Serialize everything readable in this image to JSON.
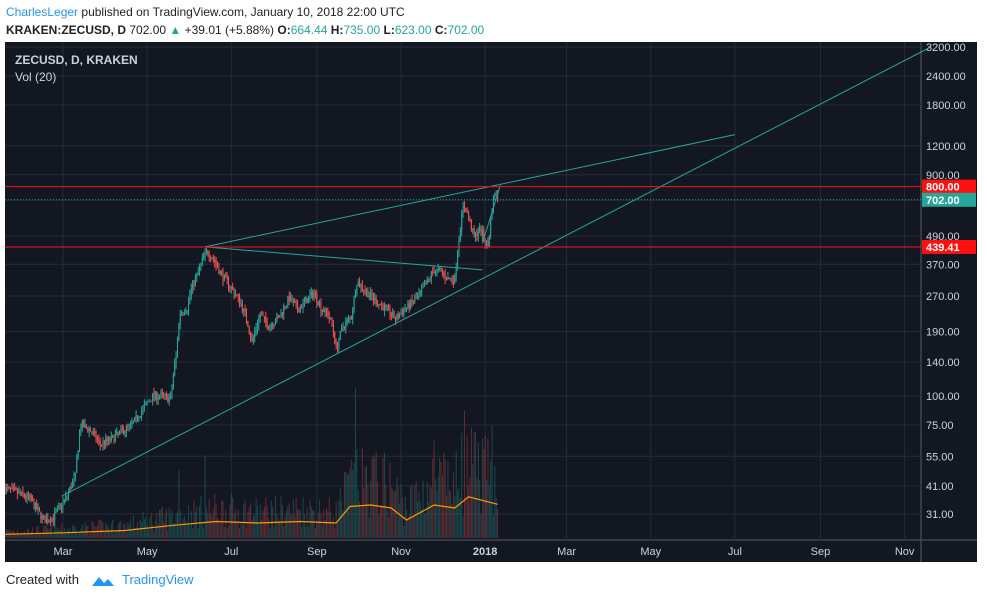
{
  "header": {
    "author": "CharlesLeger",
    "published_text": "published on TradingView.com, January 10, 2018 22:00 UTC",
    "symbol": "KRAKEN:ZECUSD, D",
    "last": "702.00",
    "change": "+39.01 (+5.88%)",
    "o_label": "O:",
    "o_value": "664.44",
    "h_label": "H:",
    "h_value": "735.00",
    "l_label": "L:",
    "l_value": "623.00",
    "c_label": "C:",
    "c_value": "702.00"
  },
  "footer": {
    "created_with": "Created with",
    "brand": "TradingView"
  },
  "colors": {
    "background": "#131722",
    "up": "#26a69a",
    "down": "#ef5350",
    "trendline": "#26a69a",
    "resistance": "#ff1010",
    "volume_ma": "#ff9800"
  },
  "chart_data": {
    "type": "candlestick",
    "title": "ZECUSD, D, KRAKEN",
    "subtitle": "Vol (20)",
    "y_scale": "log",
    "y_ticks": [
      3200,
      2400,
      1800,
      1200,
      900,
      700,
      490,
      370,
      270,
      190,
      140,
      100,
      75,
      55,
      41,
      31
    ],
    "y_tick_labels": [
      "3200.00",
      "2400.00",
      "1800.00",
      "1200.00",
      "900.00",
      "700.00",
      "490.00",
      "370.00",
      "270.00",
      "190.00",
      "140.00",
      "100.00",
      "75.00",
      "55.00",
      "41.00",
      "31.00"
    ],
    "x_labels": [
      {
        "label": "Mar",
        "date": "2017-03-01"
      },
      {
        "label": "May",
        "date": "2017-05-01"
      },
      {
        "label": "Jul",
        "date": "2017-07-01"
      },
      {
        "label": "Sep",
        "date": "2017-09-01"
      },
      {
        "label": "Nov",
        "date": "2017-11-01"
      },
      {
        "label": "2018",
        "date": "2018-01-01"
      },
      {
        "label": "Mar",
        "date": "2018-03-01"
      },
      {
        "label": "May",
        "date": "2018-05-01"
      },
      {
        "label": "Jul",
        "date": "2018-07-01"
      },
      {
        "label": "Sep",
        "date": "2018-09-01"
      },
      {
        "label": "Nov",
        "date": "2018-11-01"
      }
    ],
    "x_range": [
      "2017-01-18",
      "2018-12-01"
    ],
    "price_anchors": [
      [
        "2017-01-18",
        40
      ],
      [
        "2017-01-28",
        38
      ],
      [
        "2017-02-05",
        36
      ],
      [
        "2017-02-15",
        29
      ],
      [
        "2017-02-22",
        30
      ],
      [
        "2017-03-03",
        36
      ],
      [
        "2017-03-10",
        45
      ],
      [
        "2017-03-14",
        75
      ],
      [
        "2017-03-20",
        72
      ],
      [
        "2017-03-28",
        62
      ],
      [
        "2017-04-05",
        65
      ],
      [
        "2017-04-12",
        70
      ],
      [
        "2017-04-20",
        75
      ],
      [
        "2017-04-28",
        88
      ],
      [
        "2017-05-05",
        100
      ],
      [
        "2017-05-12",
        100
      ],
      [
        "2017-05-18",
        97
      ],
      [
        "2017-05-22",
        150
      ],
      [
        "2017-05-25",
        230
      ],
      [
        "2017-05-30",
        240
      ],
      [
        "2017-06-02",
        290
      ],
      [
        "2017-06-07",
        340
      ],
      [
        "2017-06-11",
        400
      ],
      [
        "2017-06-14",
        420
      ],
      [
        "2017-06-18",
        390
      ],
      [
        "2017-06-23",
        340
      ],
      [
        "2017-06-28",
        310
      ],
      [
        "2017-07-03",
        280
      ],
      [
        "2017-07-08",
        250
      ],
      [
        "2017-07-13",
        205
      ],
      [
        "2017-07-16",
        170
      ],
      [
        "2017-07-22",
        225
      ],
      [
        "2017-07-28",
        200
      ],
      [
        "2017-08-05",
        220
      ],
      [
        "2017-08-12",
        265
      ],
      [
        "2017-08-18",
        235
      ],
      [
        "2017-08-25",
        260
      ],
      [
        "2017-08-30",
        280
      ],
      [
        "2017-09-04",
        240
      ],
      [
        "2017-09-08",
        230
      ],
      [
        "2017-09-12",
        205
      ],
      [
        "2017-09-15",
        160
      ],
      [
        "2017-09-20",
        200
      ],
      [
        "2017-09-26",
        220
      ],
      [
        "2017-09-30",
        310
      ],
      [
        "2017-10-05",
        290
      ],
      [
        "2017-10-10",
        270
      ],
      [
        "2017-10-16",
        250
      ],
      [
        "2017-10-22",
        235
      ],
      [
        "2017-10-28",
        215
      ],
      [
        "2017-11-03",
        235
      ],
      [
        "2017-11-08",
        250
      ],
      [
        "2017-11-14",
        270
      ],
      [
        "2017-11-20",
        310
      ],
      [
        "2017-11-25",
        350
      ],
      [
        "2017-11-30",
        345
      ],
      [
        "2017-12-05",
        320
      ],
      [
        "2017-12-10",
        320
      ],
      [
        "2017-12-13",
        480
      ],
      [
        "2017-12-16",
        650
      ],
      [
        "2017-12-18",
        640
      ],
      [
        "2017-12-21",
        560
      ],
      [
        "2017-12-24",
        480
      ],
      [
        "2017-12-27",
        520
      ],
      [
        "2017-12-30",
        500
      ],
      [
        "2018-01-03",
        440
      ],
      [
        "2018-01-06",
        640
      ],
      [
        "2018-01-08",
        760
      ],
      [
        "2018-01-10",
        702
      ]
    ],
    "volume_ma_anchors": [
      [
        "2017-01-18",
        0.05
      ],
      [
        "2017-03-01",
        0.07
      ],
      [
        "2017-04-15",
        0.1
      ],
      [
        "2017-05-20",
        0.17
      ],
      [
        "2017-06-20",
        0.22
      ],
      [
        "2017-07-20",
        0.2
      ],
      [
        "2017-08-20",
        0.22
      ],
      [
        "2017-09-15",
        0.2
      ],
      [
        "2017-09-25",
        0.42
      ],
      [
        "2017-10-10",
        0.44
      ],
      [
        "2017-10-25",
        0.4
      ],
      [
        "2017-11-05",
        0.24
      ],
      [
        "2017-11-25",
        0.44
      ],
      [
        "2017-12-10",
        0.4
      ],
      [
        "2017-12-20",
        0.55
      ],
      [
        "2018-01-10",
        0.45
      ]
    ],
    "volume_spikes": [
      [
        "2017-05-24",
        0.45
      ],
      [
        "2017-06-12",
        0.55
      ],
      [
        "2017-09-29",
        1.0
      ],
      [
        "2017-10-12",
        0.55
      ],
      [
        "2017-11-25",
        0.65
      ],
      [
        "2017-12-15",
        0.7
      ],
      [
        "2017-12-17",
        0.85
      ],
      [
        "2018-01-06",
        0.75
      ]
    ],
    "trendlines": [
      {
        "p1": [
          "2017-02-28",
          37
        ],
        "p2": [
          "2018-11-20",
          3200
        ]
      },
      {
        "p1": [
          "2017-06-12",
          440
        ],
        "p2": [
          "2018-07-01",
          1340
        ]
      },
      {
        "p1": [
          "2017-06-12",
          440
        ],
        "p2": [
          "2017-12-30",
          350
        ]
      },
      {
        "p1": [
          "2017-12-30",
          455
        ],
        "p2": [
          "2018-01-12",
          810
        ]
      }
    ],
    "horizontal_lines": [
      {
        "price": 800,
        "label": "800.00",
        "color": "#ff1010"
      },
      {
        "price": 439.41,
        "label": "439.41",
        "color": "#ff1010"
      }
    ],
    "last_price": {
      "price": 702,
      "label": "702.00",
      "color": "#26a69a"
    }
  }
}
